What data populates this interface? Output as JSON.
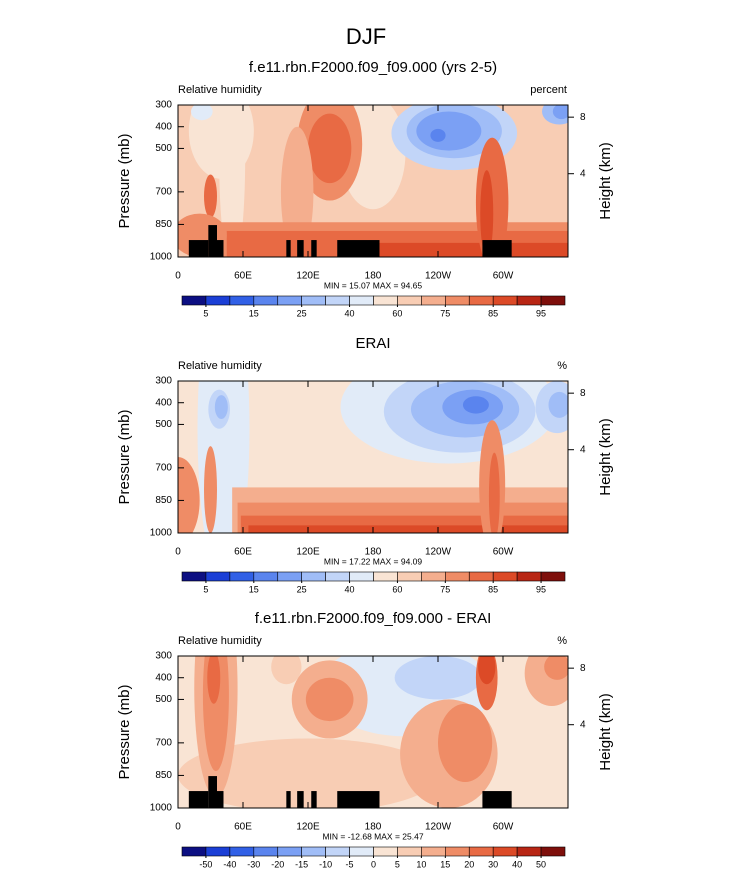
{
  "title": "DJF",
  "chart_data": [
    {
      "type": "contour",
      "title": "f.e11.rbn.F2000.f09_f09.000 (yrs 2-5)",
      "left_label": "Relative humidity",
      "right_label": "percent",
      "ylabel": "Pressure (mb)",
      "y2label": "Height (km)",
      "xlim": [
        0,
        360
      ],
      "xticks": [
        0,
        {
          "value": 60,
          "label": "60E"
        },
        {
          "value": 120,
          "label": "120E"
        },
        180,
        {
          "value": 240,
          "label": "120W"
        },
        {
          "value": 300,
          "label": "60W"
        }
      ],
      "ylim": [
        1000,
        300
      ],
      "yticks": [
        300,
        400,
        500,
        700,
        850,
        1000
      ],
      "y2ticks": [
        8,
        4
      ],
      "stats": "MIN = 15.07  MAX = 94.65",
      "colorbar": {
        "labels": [
          5,
          15,
          25,
          40,
          60,
          75,
          85,
          95
        ],
        "colors": [
          "#0c0f82",
          "#1b3fd6",
          "#3160e6",
          "#5a84ee",
          "#7ba0f4",
          "#a0bdf7",
          "#c2d5f8",
          "#e1ebf8",
          "#f9e4d4",
          "#f8cdb4",
          "#f4ae8e",
          "#ef8c66",
          "#e86a44",
          "#dc4a27",
          "#b82614",
          "#7e0f0b"
        ]
      }
    },
    {
      "type": "contour",
      "title": "ERAI",
      "left_label": "Relative humidity",
      "right_label": "%",
      "ylabel": "Pressure (mb)",
      "y2label": "Height (km)",
      "xlim": [
        0,
        360
      ],
      "xticks": [
        0,
        {
          "value": 60,
          "label": "60E"
        },
        {
          "value": 120,
          "label": "120E"
        },
        180,
        {
          "value": 240,
          "label": "120W"
        },
        {
          "value": 300,
          "label": "60W"
        }
      ],
      "ylim": [
        1000,
        300
      ],
      "yticks": [
        300,
        400,
        500,
        700,
        850,
        1000
      ],
      "y2ticks": [
        8,
        4
      ],
      "stats": "MIN = 17.22  MAX = 94.09",
      "colorbar": {
        "labels": [
          5,
          15,
          25,
          40,
          60,
          75,
          85,
          95
        ],
        "colors": [
          "#0c0f82",
          "#1b3fd6",
          "#3160e6",
          "#5a84ee",
          "#7ba0f4",
          "#a0bdf7",
          "#c2d5f8",
          "#e1ebf8",
          "#f9e4d4",
          "#f8cdb4",
          "#f4ae8e",
          "#ef8c66",
          "#e86a44",
          "#dc4a27",
          "#b82614",
          "#7e0f0b"
        ]
      }
    },
    {
      "type": "contour",
      "title": "f.e11.rbn.F2000.f09_f09.000 - ERAI",
      "left_label": "Relative humidity",
      "right_label": "%",
      "ylabel": "Pressure (mb)",
      "y2label": "Height (km)",
      "xlim": [
        0,
        360
      ],
      "xticks": [
        0,
        {
          "value": 60,
          "label": "60E"
        },
        {
          "value": 120,
          "label": "120E"
        },
        180,
        {
          "value": 240,
          "label": "120W"
        },
        {
          "value": 300,
          "label": "60W"
        }
      ],
      "ylim": [
        1000,
        300
      ],
      "yticks": [
        300,
        400,
        500,
        700,
        850,
        1000
      ],
      "y2ticks": [
        8,
        4
      ],
      "stats": "MIN = -12.68  MAX = 25.47",
      "colorbar": {
        "labels": [
          -50,
          -40,
          -30,
          -20,
          -15,
          -10,
          -5,
          0,
          5,
          10,
          15,
          20,
          30,
          40,
          50
        ],
        "colors": [
          "#0c0f82",
          "#1b3fd6",
          "#3160e6",
          "#5a84ee",
          "#7ba0f4",
          "#a0bdf7",
          "#c2d5f8",
          "#e1ebf8",
          "#f9e4d4",
          "#f8cdb4",
          "#f4ae8e",
          "#ef8c66",
          "#e86a44",
          "#dc4a27",
          "#b82614",
          "#7e0f0b"
        ]
      }
    }
  ]
}
